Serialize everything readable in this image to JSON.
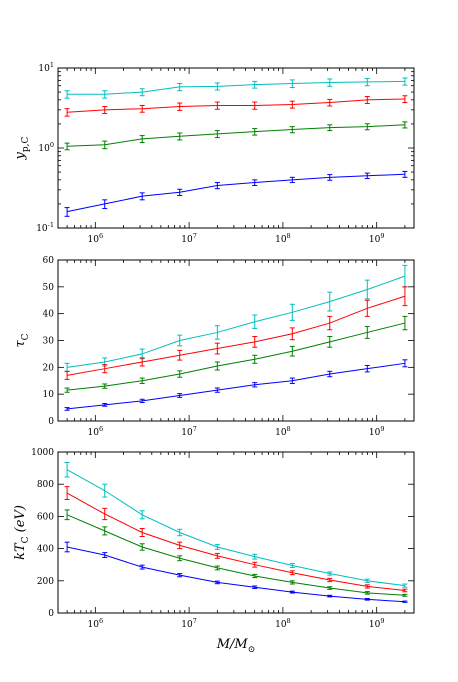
{
  "chart_data": [
    {
      "type": "line",
      "ylabel": "y_p,C",
      "xscale": "log",
      "yscale": "log",
      "xlim": [
        400000,
        2500000000
      ],
      "ylim": [
        0.1,
        10
      ],
      "x_ticks": [
        1000000,
        10000000,
        100000000,
        1000000000
      ],
      "x_tick_labels": [
        "10^6",
        "10^7",
        "10^8",
        "10^9"
      ],
      "y_ticks": [
        0.1,
        1,
        10
      ],
      "y_tick_labels": [
        "10^-1",
        "10^0",
        "10^1"
      ],
      "x": [
        500000,
        1260000,
        3160000,
        7940000,
        20000000,
        50100000,
        126000000,
        316000000,
        794000000,
        2000000000
      ],
      "series": [
        {
          "color": "#00bfbf",
          "values": [
            4.7,
            4.7,
            5.0,
            5.8,
            5.9,
            6.2,
            6.4,
            6.6,
            6.7,
            6.8
          ],
          "errors": [
            0.5,
            0.5,
            0.5,
            0.6,
            0.6,
            0.6,
            0.7,
            0.7,
            0.7,
            0.7
          ]
        },
        {
          "color": "#ff0000",
          "values": [
            2.8,
            3.0,
            3.1,
            3.3,
            3.4,
            3.4,
            3.5,
            3.7,
            4.0,
            4.1
          ],
          "errors": [
            0.3,
            0.3,
            0.3,
            0.35,
            0.35,
            0.35,
            0.35,
            0.35,
            0.4,
            0.4
          ]
        },
        {
          "color": "#008000",
          "values": [
            1.05,
            1.1,
            1.3,
            1.4,
            1.5,
            1.6,
            1.7,
            1.8,
            1.85,
            1.95
          ],
          "errors": [
            0.1,
            0.12,
            0.13,
            0.14,
            0.15,
            0.15,
            0.15,
            0.15,
            0.16,
            0.17
          ]
        },
        {
          "color": "#0000ff",
          "values": [
            0.16,
            0.2,
            0.25,
            0.28,
            0.34,
            0.37,
            0.4,
            0.43,
            0.45,
            0.47
          ],
          "errors": [
            0.02,
            0.025,
            0.025,
            0.025,
            0.03,
            0.03,
            0.03,
            0.035,
            0.035,
            0.04
          ]
        }
      ]
    },
    {
      "type": "line",
      "ylabel": "τ_C",
      "xscale": "log",
      "yscale": "linear",
      "xlim": [
        400000,
        2500000000
      ],
      "ylim": [
        0,
        60
      ],
      "x_ticks": [
        1000000,
        10000000,
        100000000,
        1000000000
      ],
      "x_tick_labels": [
        "10^6",
        "10^7",
        "10^8",
        "10^9"
      ],
      "y_ticks": [
        0,
        10,
        20,
        30,
        40,
        50,
        60
      ],
      "y_tick_labels": [
        "0",
        "10",
        "20",
        "30",
        "40",
        "50",
        "60"
      ],
      "x": [
        500000,
        1260000,
        3160000,
        7940000,
        20000000,
        50100000,
        126000000,
        316000000,
        794000000,
        2000000000
      ],
      "series": [
        {
          "color": "#00bfbf",
          "values": [
            20,
            22,
            25,
            30,
            33,
            37,
            40.5,
            44.5,
            49,
            54
          ],
          "errors": [
            1.5,
            1.5,
            1.8,
            2.0,
            2.5,
            2.5,
            3.0,
            3.5,
            3.5,
            4.0
          ]
        },
        {
          "color": "#ff0000",
          "values": [
            17,
            19.5,
            22,
            24.5,
            27,
            29.5,
            32.5,
            36.5,
            42,
            46.5
          ],
          "errors": [
            1.5,
            1.5,
            1.5,
            1.8,
            2.0,
            2.0,
            2.2,
            2.5,
            3.0,
            3.5
          ]
        },
        {
          "color": "#008000",
          "values": [
            11.5,
            13,
            15,
            17.5,
            20.5,
            23,
            26,
            29.5,
            33,
            36.5
          ],
          "errors": [
            0.8,
            0.8,
            1.0,
            1.2,
            1.5,
            1.5,
            1.8,
            2.0,
            2.2,
            2.5
          ]
        },
        {
          "color": "#0000ff",
          "values": [
            4.5,
            6,
            7.5,
            9.5,
            11.5,
            13.5,
            15,
            17.5,
            19.5,
            21.5
          ],
          "errors": [
            0.5,
            0.5,
            0.6,
            0.7,
            0.8,
            0.8,
            1.0,
            1.0,
            1.2,
            1.3
          ]
        }
      ]
    },
    {
      "type": "line",
      "ylabel": "kT_C (eV)",
      "xlabel": "M/M_⊙",
      "xscale": "log",
      "yscale": "linear",
      "xlim": [
        400000,
        2500000000
      ],
      "ylim": [
        0,
        1000
      ],
      "x_ticks": [
        1000000,
        10000000,
        100000000,
        1000000000
      ],
      "x_tick_labels": [
        "10^6",
        "10^7",
        "10^8",
        "10^9"
      ],
      "y_ticks": [
        0,
        200,
        400,
        600,
        800,
        1000
      ],
      "y_tick_labels": [
        "0",
        "200",
        "400",
        "600",
        "800",
        "1000"
      ],
      "x": [
        500000,
        1260000,
        3160000,
        7940000,
        20000000,
        50100000,
        126000000,
        316000000,
        794000000,
        2000000000
      ],
      "series": [
        {
          "color": "#00bfbf",
          "values": [
            890,
            760,
            610,
            500,
            410,
            350,
            295,
            245,
            200,
            170
          ],
          "errors": [
            45,
            40,
            25,
            20,
            15,
            15,
            12,
            10,
            10,
            10
          ]
        },
        {
          "color": "#ff0000",
          "values": [
            745,
            615,
            500,
            420,
            355,
            300,
            250,
            205,
            165,
            140
          ],
          "errors": [
            40,
            35,
            25,
            20,
            15,
            15,
            12,
            10,
            10,
            8
          ]
        },
        {
          "color": "#008000",
          "values": [
            610,
            510,
            410,
            340,
            280,
            230,
            190,
            155,
            125,
            110
          ],
          "errors": [
            30,
            25,
            20,
            15,
            12,
            10,
            10,
            8,
            8,
            6
          ]
        },
        {
          "color": "#0000ff",
          "values": [
            410,
            360,
            285,
            235,
            190,
            160,
            130,
            105,
            85,
            70
          ],
          "errors": [
            30,
            15,
            12,
            10,
            8,
            8,
            6,
            5,
            5,
            4
          ]
        }
      ]
    }
  ]
}
